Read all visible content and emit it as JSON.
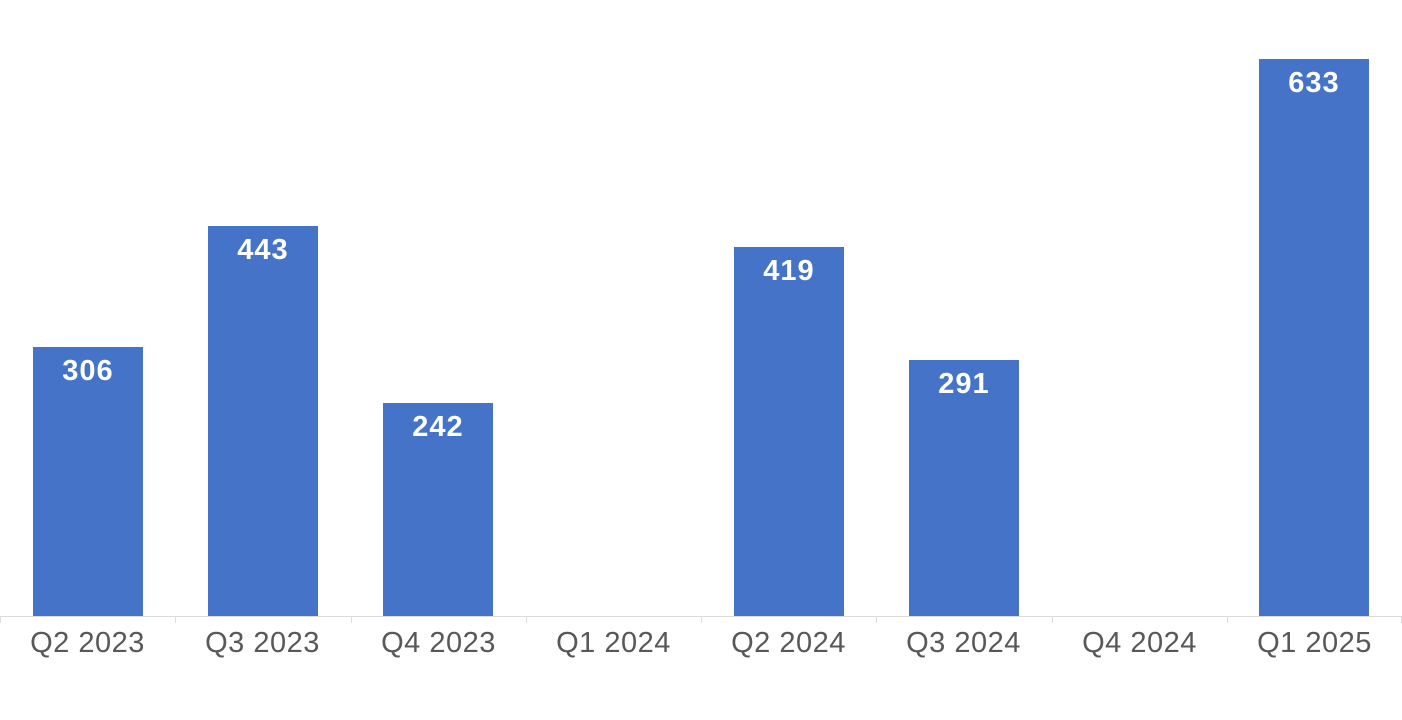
{
  "chart_data": {
    "type": "bar",
    "title": "",
    "xlabel": "",
    "ylabel": "",
    "categories": [
      "Q2 2023",
      "Q3 2023",
      "Q4 2023",
      "Q1 2024",
      "Q2 2024",
      "Q3 2024",
      "Q4 2024",
      "Q1 2025"
    ],
    "values": [
      306,
      443,
      242,
      null,
      419,
      291,
      null,
      633
    ],
    "ylim": [
      0,
      700
    ],
    "grid": false,
    "legend": false,
    "data_labels": true,
    "data_label_position": "inside-top",
    "colors": {
      "bar": "#4473c7",
      "bar_label": "#ffffff",
      "axis_label": "#58585a",
      "axis_line": "#dcdcdc",
      "background": "#ffffff"
    }
  }
}
